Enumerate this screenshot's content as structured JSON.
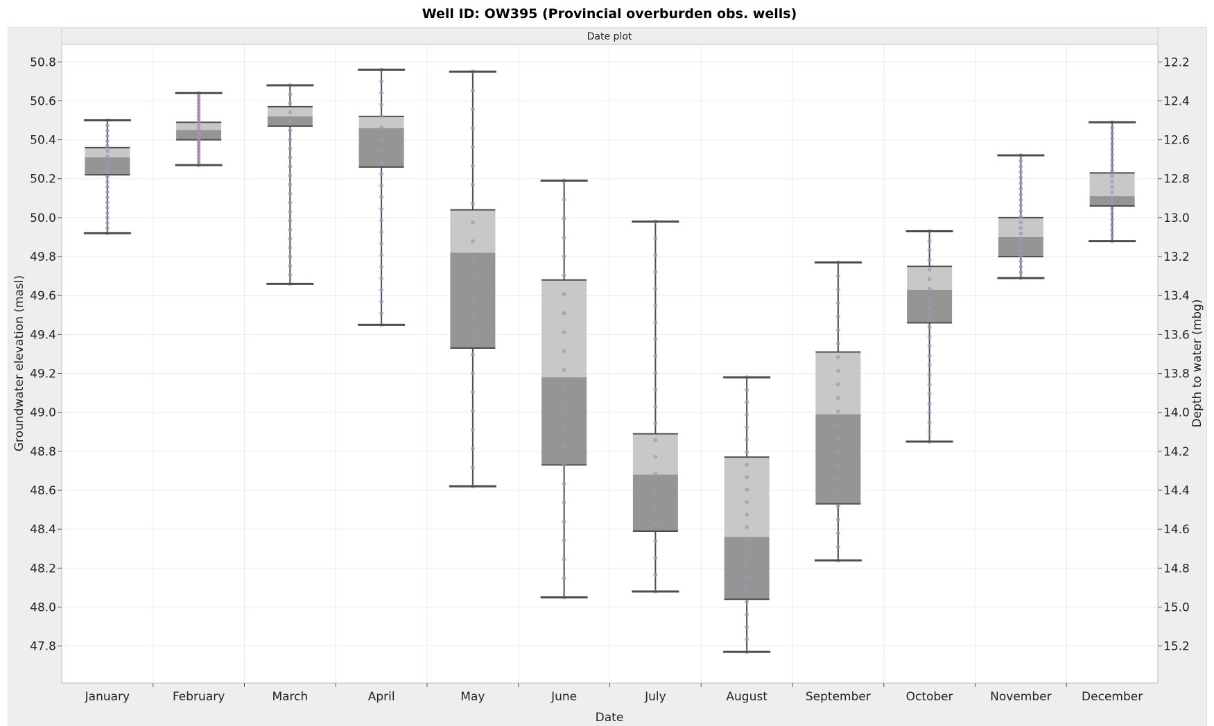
{
  "chart_data": {
    "type": "box",
    "title": "Well ID: OW395 (Provincial overburden obs. wells)",
    "panel_label": "Date plot",
    "xlabel": "Date",
    "ylabel_left": "Groundwater elevation (masl)",
    "ylabel_right": "Depth to water (mbg)",
    "categories": [
      "January",
      "February",
      "March",
      "April",
      "May",
      "June",
      "July",
      "August",
      "September",
      "October",
      "November",
      "December"
    ],
    "y_ticks_left": [
      "47.8",
      "48.0",
      "48.2",
      "48.4",
      "48.6",
      "48.8",
      "49.0",
      "49.2",
      "49.4",
      "49.6",
      "49.8",
      "50.0",
      "50.2",
      "50.4",
      "50.6",
      "50.8"
    ],
    "y_ticks_right": [
      "15.2",
      "15.0",
      "14.8",
      "14.6",
      "14.4",
      "14.2",
      "14.0",
      "13.8",
      "13.6",
      "13.4",
      "13.2",
      "13.0",
      "12.8",
      "12.6",
      "12.4",
      "12.2"
    ],
    "ylim_left": [
      47.61,
      50.89
    ],
    "grid": true,
    "colors": {
      "box_upper": "#c8c8c8",
      "box_lower": "#959595",
      "whisker": "#4d4d4d",
      "points": "#a991b9",
      "grid": "#ececec",
      "strip": "#eeeeee"
    },
    "boxes": [
      {
        "month": "January",
        "min": 49.92,
        "q1": 50.22,
        "median": 50.31,
        "q3": 50.36,
        "max": 50.5
      },
      {
        "month": "February",
        "min": 50.27,
        "q1": 50.4,
        "median": 50.45,
        "q3": 50.49,
        "max": 50.64
      },
      {
        "month": "March",
        "min": 49.66,
        "q1": 50.47,
        "median": 50.52,
        "q3": 50.57,
        "max": 50.68
      },
      {
        "month": "April",
        "min": 49.45,
        "q1": 50.26,
        "median": 50.46,
        "q3": 50.52,
        "max": 50.76
      },
      {
        "month": "May",
        "min": 48.62,
        "q1": 49.33,
        "median": 49.82,
        "q3": 50.04,
        "max": 50.75
      },
      {
        "month": "June",
        "min": 48.05,
        "q1": 48.73,
        "median": 49.18,
        "q3": 49.68,
        "max": 50.19
      },
      {
        "month": "July",
        "min": 48.08,
        "q1": 48.39,
        "median": 48.68,
        "q3": 48.89,
        "max": 49.98
      },
      {
        "month": "August",
        "min": 47.77,
        "q1": 48.04,
        "median": 48.36,
        "q3": 48.77,
        "max": 49.18
      },
      {
        "month": "September",
        "min": 48.24,
        "q1": 48.53,
        "median": 48.99,
        "q3": 49.31,
        "max": 49.77
      },
      {
        "month": "October",
        "min": 48.85,
        "q1": 49.46,
        "median": 49.63,
        "q3": 49.75,
        "max": 49.93
      },
      {
        "month": "November",
        "min": 49.69,
        "q1": 49.8,
        "median": 49.9,
        "q3": 50.0,
        "max": 50.32
      },
      {
        "month": "December",
        "min": 49.88,
        "q1": 50.06,
        "median": 50.11,
        "q3": 50.23,
        "max": 50.49
      }
    ]
  }
}
